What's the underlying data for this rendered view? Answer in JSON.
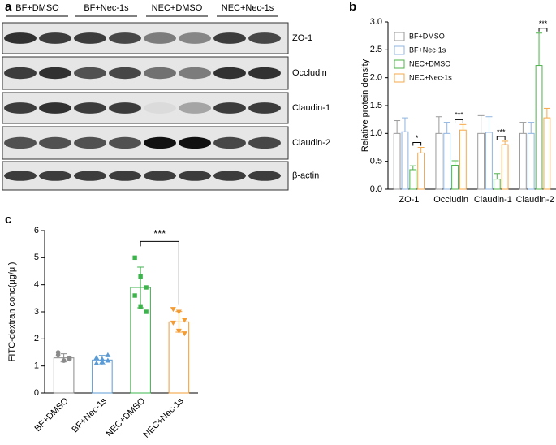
{
  "blot": {
    "label": "a",
    "groups": [
      "BF+DMSO",
      "BF+Nec-1s",
      "NEC+DMSO",
      "NEC+Nec-1s"
    ],
    "rows": [
      "ZO-1",
      "Occludin",
      "Claudin-1",
      "Claudin-2",
      "β-actin"
    ]
  },
  "chart_data": [
    {
      "type": "bar",
      "label": "b",
      "ylabel": "Relative protein density",
      "categories": [
        "ZO-1",
        "Occludin",
        "Claudin-1",
        "Claudin-2"
      ],
      "series": [
        {
          "name": "BF+DMSO",
          "color": "#9a9a9a",
          "values": [
            1.0,
            1.0,
            1.0,
            1.0
          ],
          "errors": [
            0.23,
            0.3,
            0.32,
            0.2
          ]
        },
        {
          "name": "BF+Nec-1s",
          "color": "#8fb4df",
          "values": [
            1.03,
            1.0,
            1.02,
            1.0
          ],
          "errors": [
            0.25,
            0.2,
            0.28,
            0.2
          ]
        },
        {
          "name": "NEC+DMSO",
          "color": "#4cb34a",
          "values": [
            0.35,
            0.43,
            0.18,
            2.22
          ],
          "errors": [
            0.07,
            0.08,
            0.1,
            0.58
          ]
        },
        {
          "name": "NEC+Nec-1s",
          "color": "#f5a94a",
          "values": [
            0.65,
            1.06,
            0.8,
            1.28
          ],
          "errors": [
            0.1,
            0.1,
            0.06,
            0.17
          ]
        }
      ],
      "significance": [
        "*",
        "***",
        "***",
        "***"
      ],
      "ylim": [
        0,
        3
      ],
      "yticks": [
        {
          "value": 0,
          "label": "0.0"
        },
        0.5,
        {
          "value": 1,
          "label": "1.0"
        },
        1.5,
        {
          "value": 2,
          "label": "2.0"
        },
        2.5,
        {
          "value": 3,
          "label": "3.0"
        }
      ],
      "legend": "upper left"
    },
    {
      "type": "bar",
      "label": "c",
      "ylabel": "FITC-dextran conc(μg/μl)",
      "categories": [
        "BF+DMSO",
        "BF+Nec-1s",
        "NEC+DMSO",
        "NEC+Nec-1s"
      ],
      "values": [
        1.3,
        1.22,
        3.9,
        2.63
      ],
      "errors": [
        0.15,
        0.17,
        0.75,
        0.38
      ],
      "colors": [
        "#8a8a8a",
        "#5b9bd5",
        "#3cb44b",
        "#f39c33"
      ],
      "points": [
        [
          1.4,
          1.2,
          1.3,
          1.5,
          1.2,
          1.25
        ],
        [
          1.3,
          1.25,
          1.4,
          1.1,
          1.15,
          1.2
        ],
        [
          5.0,
          4.3,
          3.9,
          3.6,
          3.2,
          3.0
        ],
        [
          3.1,
          3.0,
          2.7,
          2.6,
          2.3,
          2.2
        ]
      ],
      "significance": "***",
      "ylim": [
        0,
        6
      ],
      "yticks": [
        0,
        1,
        2,
        3,
        4,
        5,
        6
      ]
    }
  ]
}
